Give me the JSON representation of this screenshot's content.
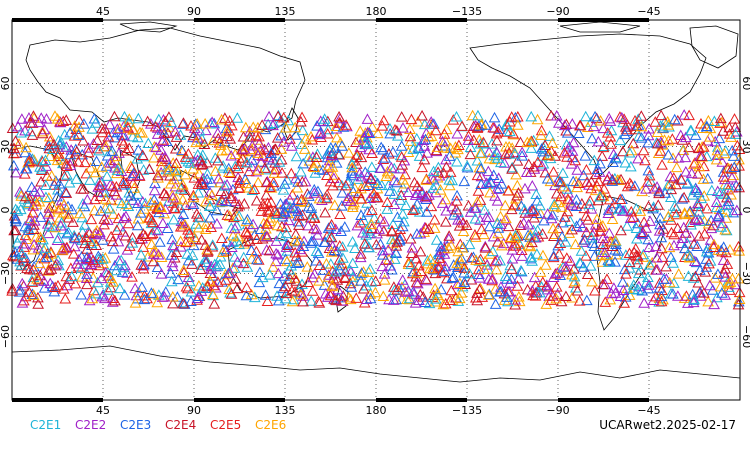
{
  "map": {
    "projection": "equirectangular",
    "lon_range": [
      0,
      360
    ],
    "lat_range": [
      -90,
      90
    ],
    "grid": "dotted",
    "lon_ticks": [
      {
        "lon": 45,
        "label": "45"
      },
      {
        "lon": 90,
        "label": "90"
      },
      {
        "lon": 135,
        "label": "135"
      },
      {
        "lon": 180,
        "label": "180"
      },
      {
        "lon": 225,
        "label": "−135"
      },
      {
        "lon": 270,
        "label": "−90"
      },
      {
        "lon": 315,
        "label": "−45"
      }
    ],
    "lat_ticks": [
      {
        "lat": 60,
        "label": "60"
      },
      {
        "lat": 30,
        "label": "30"
      },
      {
        "lat": 0,
        "label": "0"
      },
      {
        "lat": -30,
        "label": "−30"
      },
      {
        "lat": -60,
        "label": "−60"
      }
    ],
    "marker": "triangle-outline",
    "observation_lat_band": [
      -45,
      45
    ]
  },
  "legend": [
    {
      "name": "C2E1",
      "color": "#1fb4d8"
    },
    {
      "name": "C2E2",
      "color": "#a020c8"
    },
    {
      "name": "C2E3",
      "color": "#1e64e6"
    },
    {
      "name": "C2E4",
      "color": "#c81428"
    },
    {
      "name": "C2E5",
      "color": "#e61e1e"
    },
    {
      "name": "C2E6",
      "color": "#ffa500"
    }
  ],
  "stamp": "UCARwet2.2025-02-17"
}
